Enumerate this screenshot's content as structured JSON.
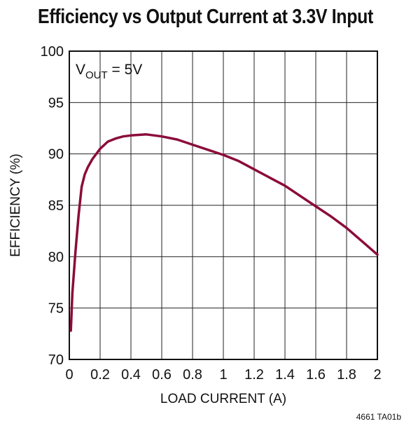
{
  "chart_data": {
    "type": "line",
    "title": "Efficiency vs Output Current at 3.3V Input",
    "xlabel": "LOAD CURRENT (A)",
    "ylabel": "EFFICIENCY (%)",
    "xlim": [
      0,
      2
    ],
    "ylim": [
      70,
      100
    ],
    "x_ticks": [
      "0",
      "0.2",
      "0.4",
      "0.6",
      "0.8",
      "1",
      "1.2",
      "1.4",
      "1.6",
      "1.8",
      "2"
    ],
    "y_ticks": [
      "70",
      "75",
      "80",
      "85",
      "90",
      "95",
      "100"
    ],
    "grid": true,
    "annotation": {
      "main": "V",
      "sub": "OUT",
      "rest": " = 5V"
    },
    "series": [
      {
        "color": "#8b0c3a",
        "x": [
          0.01,
          0.02,
          0.04,
          0.06,
          0.08,
          0.1,
          0.12,
          0.15,
          0.2,
          0.25,
          0.3,
          0.35,
          0.4,
          0.5,
          0.6,
          0.7,
          0.8,
          0.9,
          1.0,
          1.1,
          1.2,
          1.3,
          1.4,
          1.5,
          1.6,
          1.7,
          1.8,
          1.9,
          2.0
        ],
        "y": [
          72.8,
          76.5,
          80.5,
          84.0,
          86.8,
          88.0,
          88.7,
          89.5,
          90.5,
          91.2,
          91.5,
          91.7,
          91.8,
          91.9,
          91.7,
          91.4,
          90.9,
          90.4,
          89.9,
          89.3,
          88.5,
          87.7,
          86.9,
          85.9,
          84.9,
          83.9,
          82.8,
          81.5,
          80.2
        ]
      }
    ]
  },
  "reference_code": "4661 TA01b"
}
